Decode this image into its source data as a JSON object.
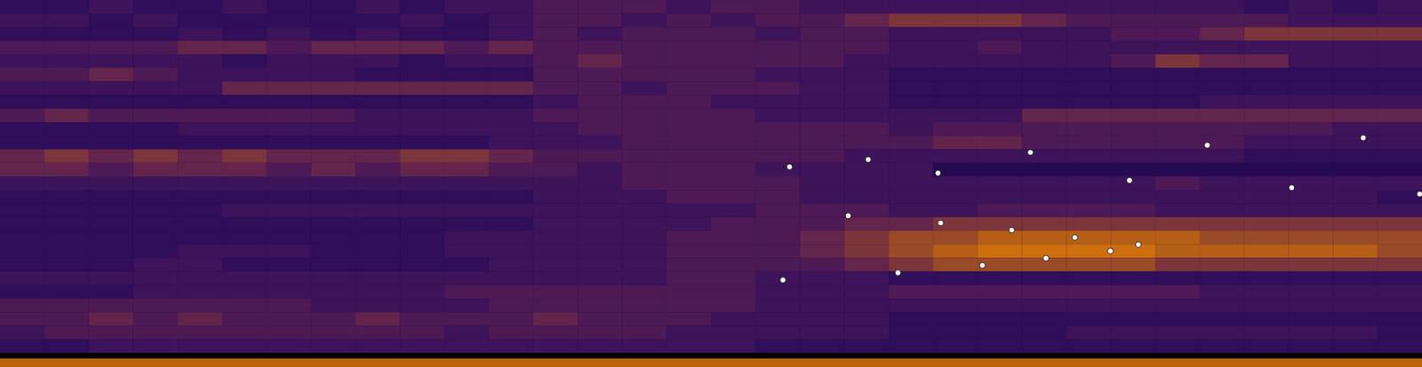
{
  "chart_data": {
    "type": "heatmap",
    "xlim": [
      0,
      32
    ],
    "ylim": [
      26,
      0
    ],
    "tick_labels": false,
    "zlim": [
      0,
      10
    ],
    "cells": [
      [
        2,
        2,
        3,
        2,
        2,
        3,
        2,
        2,
        3,
        2,
        3,
        3,
        4,
        4,
        4,
        3,
        4,
        4,
        3,
        3,
        3,
        3,
        3,
        3,
        3,
        3,
        3,
        3,
        2,
        3,
        2,
        3
      ],
      [
        3,
        3,
        2,
        3,
        2,
        2,
        2,
        2,
        2,
        3,
        2,
        3,
        4,
        4,
        3,
        4,
        3,
        4,
        4,
        5,
        6,
        6,
        6,
        5,
        4,
        4,
        4,
        4,
        4,
        3,
        3,
        3
      ],
      [
        2,
        2,
        2,
        2,
        3,
        2,
        3,
        2,
        3,
        2,
        2,
        3,
        4,
        3,
        4,
        4,
        4,
        3,
        4,
        4,
        3,
        3,
        3,
        3,
        3,
        4,
        4,
        5,
        6,
        6,
        6,
        6
      ],
      [
        4,
        4,
        4,
        4,
        5,
        5,
        4,
        5,
        5,
        5,
        4,
        5,
        4,
        4,
        4,
        4,
        4,
        4,
        4,
        4,
        3,
        3,
        4,
        3,
        3,
        3,
        3,
        3,
        3,
        3,
        3,
        3
      ],
      [
        3,
        3,
        3,
        3,
        3,
        2,
        3,
        3,
        3,
        2,
        3,
        3,
        4,
        5,
        4,
        4,
        4,
        4,
        4,
        3,
        3,
        3,
        3,
        3,
        3,
        4,
        6,
        5,
        5,
        3,
        3,
        3
      ],
      [
        4,
        4,
        5,
        4,
        3,
        3,
        3,
        3,
        2,
        2,
        2,
        2,
        4,
        4,
        4,
        4,
        4,
        3,
        3,
        3,
        2,
        2,
        2,
        2,
        2,
        2,
        2,
        2,
        2,
        2,
        2,
        2
      ],
      [
        3,
        3,
        3,
        3,
        3,
        5,
        5,
        5,
        5,
        5,
        5,
        5,
        4,
        4,
        3,
        4,
        4,
        4,
        3,
        3,
        2,
        2,
        2,
        2,
        2,
        2,
        2,
        2,
        2,
        2,
        2,
        2
      ],
      [
        2,
        2,
        2,
        2,
        2,
        2,
        2,
        2,
        2,
        2,
        2,
        2,
        3,
        4,
        4,
        4,
        3,
        3,
        3,
        3,
        2,
        2,
        2,
        2,
        2,
        2,
        2,
        3,
        3,
        3,
        3,
        3
      ],
      [
        4,
        5,
        4,
        4,
        4,
        4,
        4,
        4,
        3,
        3,
        3,
        3,
        4,
        4,
        4,
        4,
        4,
        3,
        3,
        3,
        3,
        3,
        3,
        5,
        5,
        5,
        5,
        5,
        5,
        5,
        5,
        5
      ],
      [
        2,
        2,
        2,
        2,
        3,
        3,
        3,
        3,
        3,
        3,
        3,
        3,
        3,
        4,
        4,
        4,
        4,
        4,
        4,
        4,
        3,
        4,
        4,
        4,
        4,
        4,
        4,
        4,
        4,
        4,
        3,
        3
      ],
      [
        2,
        2,
        2,
        2,
        2,
        2,
        2,
        2,
        2,
        2,
        2,
        3,
        3,
        3,
        4,
        4,
        4,
        4,
        4,
        4,
        4,
        5,
        5,
        4,
        4,
        4,
        4,
        4,
        3,
        3,
        3,
        3
      ],
      [
        5,
        6,
        5,
        6,
        5,
        6,
        5,
        5,
        5,
        6,
        6,
        5,
        4,
        4,
        4,
        4,
        4,
        4,
        4,
        3,
        3,
        3,
        3,
        3,
        3,
        3,
        3,
        3,
        2,
        2,
        2,
        2
      ],
      [
        5,
        5,
        4,
        5,
        5,
        5,
        4,
        5,
        4,
        5,
        5,
        4,
        4,
        3,
        4,
        4,
        4,
        3,
        3,
        3,
        3,
        1,
        1,
        1,
        1,
        1,
        1,
        1,
        1,
        1,
        1,
        1
      ],
      [
        3,
        3,
        3,
        3,
        3,
        3,
        3,
        3,
        3,
        3,
        3,
        3,
        3,
        3,
        4,
        4,
        4,
        4,
        3,
        3,
        3,
        3,
        3,
        3,
        3,
        3,
        4,
        3,
        3,
        3,
        3,
        3
      ],
      [
        2,
        2,
        2,
        2,
        2,
        2,
        2,
        2,
        2,
        2,
        2,
        2,
        3,
        3,
        3,
        4,
        4,
        4,
        3,
        3,
        3,
        3,
        3,
        3,
        3,
        3,
        3,
        3,
        3,
        3,
        3,
        2
      ],
      [
        2,
        2,
        2,
        2,
        2,
        3,
        3,
        3,
        3,
        3,
        3,
        3,
        3,
        3,
        3,
        3,
        3,
        4,
        4,
        4,
        3,
        3,
        4,
        4,
        4,
        4,
        3,
        3,
        3,
        3,
        3,
        3
      ],
      [
        2,
        2,
        2,
        2,
        2,
        2,
        2,
        2,
        2,
        2,
        2,
        2,
        3,
        3,
        3,
        3,
        4,
        4,
        4,
        5,
        5,
        6,
        6,
        6,
        6,
        6,
        6,
        6,
        6,
        6,
        6,
        6
      ],
      [
        2,
        2,
        2,
        2,
        2,
        2,
        2,
        2,
        2,
        2,
        3,
        3,
        3,
        3,
        3,
        4,
        4,
        4,
        5,
        6,
        7,
        7,
        8,
        8,
        8,
        8,
        8,
        7,
        7,
        7,
        7,
        7
      ],
      [
        2,
        2,
        2,
        2,
        3,
        3,
        3,
        2,
        2,
        2,
        3,
        3,
        3,
        3,
        3,
        4,
        4,
        4,
        5,
        6,
        7,
        8,
        9,
        9,
        9,
        9,
        8,
        8,
        8,
        8,
        8,
        7
      ],
      [
        2,
        2,
        2,
        3,
        3,
        2,
        2,
        2,
        2,
        2,
        2,
        3,
        3,
        3,
        3,
        4,
        4,
        4,
        4,
        5,
        6,
        7,
        7,
        7,
        7,
        7,
        6,
        6,
        6,
        6,
        6,
        6
      ],
      [
        3,
        3,
        3,
        3,
        3,
        3,
        3,
        3,
        3,
        3,
        3,
        3,
        3,
        3,
        3,
        4,
        4,
        3,
        3,
        3,
        2,
        2,
        2,
        2,
        2,
        2,
        2,
        2,
        2,
        2,
        2,
        2
      ],
      [
        2,
        2,
        2,
        3,
        3,
        3,
        3,
        3,
        3,
        3,
        4,
        4,
        4,
        4,
        4,
        4,
        4,
        3,
        3,
        3,
        4,
        4,
        4,
        4,
        4,
        4,
        4,
        3,
        3,
        3,
        3,
        3
      ],
      [
        4,
        4,
        4,
        4,
        4,
        4,
        4,
        3,
        3,
        3,
        3,
        4,
        4,
        4,
        4,
        4,
        4,
        3,
        3,
        3,
        3,
        3,
        3,
        3,
        3,
        3,
        3,
        3,
        3,
        3,
        3,
        3
      ],
      [
        4,
        4,
        5,
        4,
        5,
        4,
        4,
        4,
        5,
        4,
        4,
        4,
        5,
        4,
        4,
        4,
        3,
        3,
        3,
        3,
        2,
        2,
        2,
        2,
        2,
        2,
        2,
        2,
        2,
        2,
        2,
        2
      ],
      [
        3,
        4,
        4,
        4,
        4,
        4,
        4,
        4,
        4,
        4,
        3,
        4,
        4,
        4,
        4,
        3,
        3,
        3,
        3,
        3,
        2,
        2,
        2,
        2,
        3,
        3,
        3,
        3,
        3,
        3,
        3,
        2
      ],
      [
        2,
        2,
        3,
        3,
        3,
        3,
        3,
        3,
        3,
        3,
        3,
        3,
        3,
        3,
        3,
        3,
        3,
        2,
        2,
        2,
        2,
        2,
        2,
        2,
        2,
        2,
        2,
        2,
        2,
        2,
        2,
        2
      ]
    ],
    "points": {
      "marker": "circle",
      "x": [
        17.76,
        19.53,
        21.1,
        23.18,
        27.16,
        30.67,
        25.41,
        29.06,
        31.94,
        19.08,
        21.16,
        22.76,
        24.18,
        24.98,
        25.61,
        23.53,
        22.1,
        20.2,
        17.61
      ],
      "y": [
        12.27,
        11.73,
        12.73,
        11.2,
        10.67,
        10.13,
        13.27,
        13.8,
        14.27,
        15.87,
        16.4,
        16.93,
        17.47,
        18.47,
        18,
        19,
        19.53,
        20.07,
        20.6
      ]
    }
  }
}
